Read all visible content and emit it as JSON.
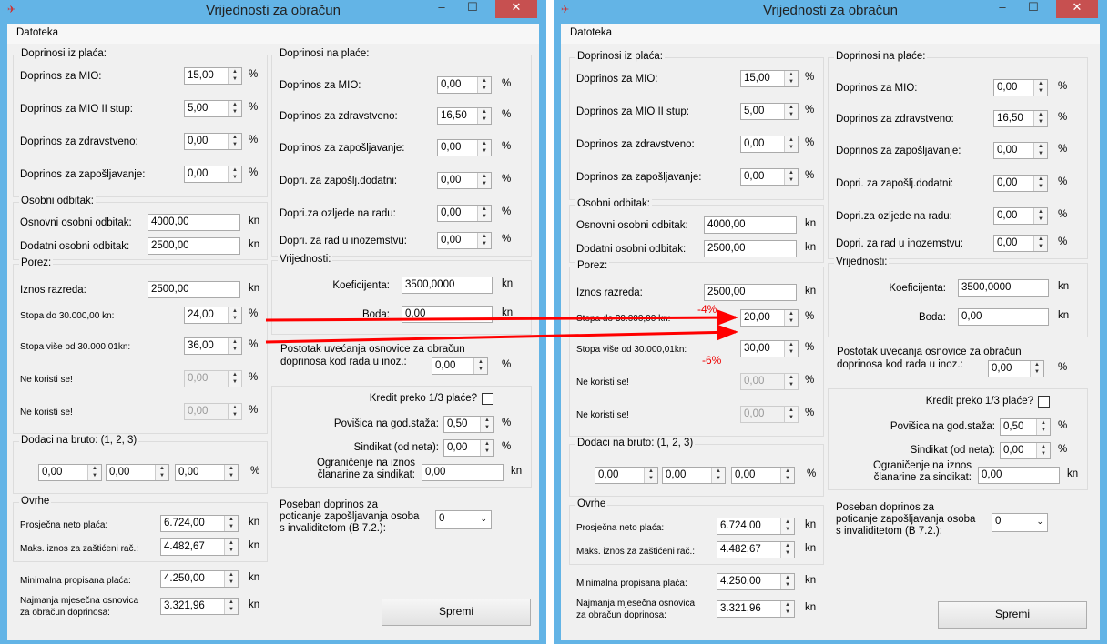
{
  "labels": {
    "menu": "Datoteka",
    "g_iz": "Doprinosi iz plaća:",
    "mio_iz": "Doprinos za MIO:",
    "mio2": "Doprinos za MIO II stup:",
    "zdr_iz": "Doprinos za zdravstveno:",
    "zap_iz": "Doprinos za zapošljavanje:",
    "g_odb": "Osobni odbitak:",
    "osn": "Osnovni osobni odbitak:",
    "dod": "Dodatni osobni odbitak:",
    "g_por": "Porez:",
    "razred": "Iznos razreda:",
    "stopa1": "Stopa do 30.000,00 kn:",
    "stopa2": "Stopa više od 30.000,01kn:",
    "nk1": "Ne koristi se!",
    "nk2": "Ne koristi se!",
    "g_dod": "Dodaci na bruto: (1, 2, 3)",
    "g_ovr": "Ovrhe",
    "prosj": "Prosječna neto plaća:",
    "maks": "Maks. iznos za zaštićeni rač.:",
    "minim": "Minimalna propisana plaća:",
    "najm1": "Najmanja mjesečna osnovica",
    "najm2": "za obračun doprinosa:",
    "g_na": "Doprinosi na plaće:",
    "mio_na": "Doprinos za MIO:",
    "zdr_na": "Doprinos za zdravstveno:",
    "zap_na": "Doprinos za zapošljavanje:",
    "zapd": "Dopri. za zapošlj.dodatni:",
    "ozlj": "Dopri.za ozljede na radu:",
    "inoz": "Dopri. za rad u inozemstvu:",
    "g_vr": "Vrijednosti:",
    "koef": "Koeficijenta:",
    "boda": "Boda:",
    "post1": "Postotak uvećanja osnovice za obračun",
    "post2": "doprinosa kod rada u inoz.:",
    "kredit": "Kredit preko 1/3 plaće?",
    "povis": "Povišica na god.staža:",
    "sind": "Sindikat (od neta):",
    "ogr1": "Ograničenje na iznos",
    "ogr2": "članarine za sindikat:",
    "pos1": "Poseban doprinos za",
    "pos2": "poticanje zapošljavanja osoba",
    "pos3": "s invaliditetom (B 7.2.):",
    "spremi": "Spremi",
    "pct": "%",
    "kn": "kn"
  },
  "windows": [
    {
      "title": "Vrijednosti za obračun",
      "minimize": "–",
      "maximize": "☐",
      "close": "✕",
      "values": {
        "mio_iz": "15,00",
        "mio2": "5,00",
        "zdr_iz": "0,00",
        "zap_iz": "0,00",
        "osn": "4000,00",
        "dod": "2500,00",
        "razred": "2500,00",
        "stopa1": "24,00",
        "stopa2": "36,00",
        "nk1": "0,00",
        "nk2": "0,00",
        "d1": "0,00",
        "d2": "0,00",
        "d3": "0,00",
        "prosj": "6.724,00",
        "maks": "4.482,67",
        "minim": "4.250,00",
        "najm": "3.321,96",
        "mio_na": "0,00",
        "zdr_na": "16,50",
        "zap_na": "0,00",
        "zapd": "0,00",
        "ozlj": "0,00",
        "inoz": "0,00",
        "koef": "3500,0000",
        "boda": "0,00",
        "post": "0,00",
        "povis": "0,50",
        "sind": "0,00",
        "ogr": "0,00",
        "pos": "0"
      },
      "kredit_checked": false
    },
    {
      "title": "Vrijednosti za obračun",
      "minimize": "–",
      "maximize": "☐",
      "close": "✕",
      "values": {
        "mio_iz": "15,00",
        "mio2": "5,00",
        "zdr_iz": "0,00",
        "zap_iz": "0,00",
        "osn": "4000,00",
        "dod": "2500,00",
        "razred": "2500,00",
        "stopa1": "20,00",
        "stopa2": "30,00",
        "nk1": "0,00",
        "nk2": "0,00",
        "d1": "0,00",
        "d2": "0,00",
        "d3": "0,00",
        "prosj": "6.724,00",
        "maks": "4.482,67",
        "minim": "4.250,00",
        "najm": "3.321,96",
        "mio_na": "0,00",
        "zdr_na": "16,50",
        "zap_na": "0,00",
        "zapd": "0,00",
        "ozlj": "0,00",
        "inoz": "0,00",
        "koef": "3500,0000",
        "boda": "0,00",
        "post": "0,00",
        "povis": "0,50",
        "sind": "0,00",
        "ogr": "0,00",
        "pos": "0"
      },
      "kredit_checked": false
    }
  ],
  "annotations": {
    "change1": "-4%",
    "change2": "-6%",
    "arrow_color": "#ff0000"
  }
}
